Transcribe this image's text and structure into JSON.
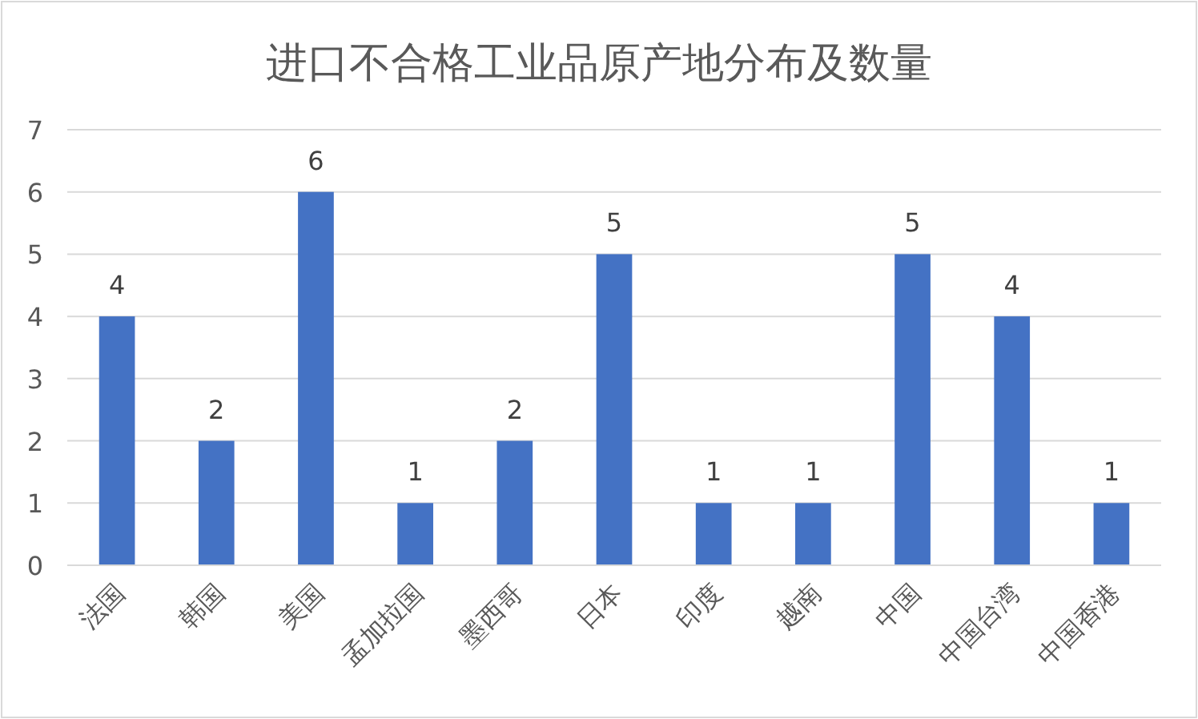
{
  "chart_data": {
    "type": "bar",
    "title": "进口不合格工业品原产地分布及数量",
    "categories": [
      "法国",
      "韩国",
      "美国",
      "孟加拉国",
      "墨西哥",
      "日本",
      "印度",
      "越南",
      "中国",
      "中国台湾",
      "中国香港"
    ],
    "values": [
      4,
      2,
      6,
      1,
      2,
      5,
      1,
      1,
      5,
      4,
      1
    ],
    "color": "#4472c4",
    "ylim": [
      0,
      7
    ],
    "yticks": [
      0,
      1,
      2,
      3,
      4,
      5,
      6,
      7
    ],
    "grid": "y",
    "data_labels": true
  }
}
